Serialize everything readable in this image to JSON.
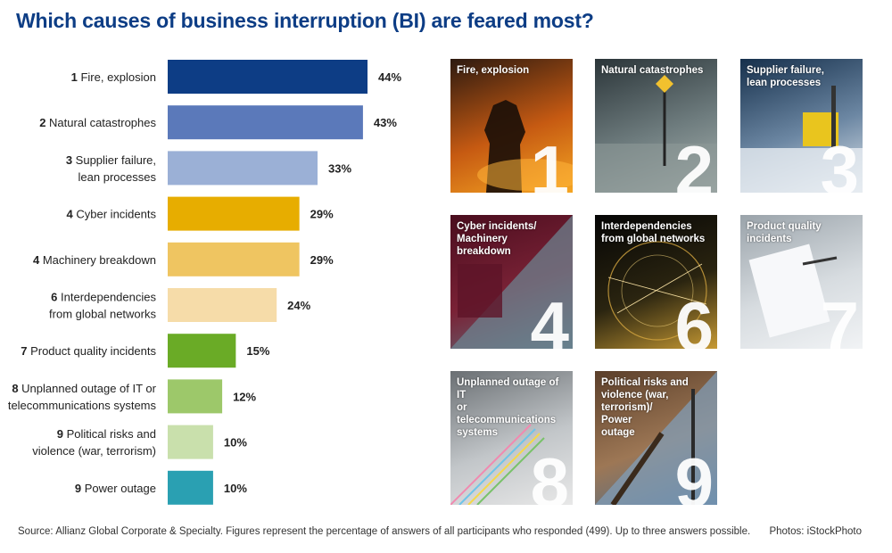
{
  "title": "Which causes of business interruption (BI) are feared most?",
  "chart_data": {
    "type": "bar",
    "orientation": "horizontal",
    "xlim": [
      0,
      44
    ],
    "categories": [
      {
        "rank": "1",
        "lines": [
          "Fire, explosion"
        ]
      },
      {
        "rank": "2",
        "lines": [
          "Natural catastrophes"
        ]
      },
      {
        "rank": "3",
        "lines": [
          "Supplier failure,",
          "lean processes"
        ]
      },
      {
        "rank": "4",
        "lines": [
          "Cyber incidents"
        ]
      },
      {
        "rank": "4",
        "lines": [
          "Machinery breakdown"
        ]
      },
      {
        "rank": "6",
        "lines": [
          "Interdependencies",
          "from global networks"
        ]
      },
      {
        "rank": "7",
        "lines": [
          "Product quality incidents"
        ]
      },
      {
        "rank": "8",
        "lines": [
          "Unplanned outage of IT or",
          "telecommunications systems"
        ]
      },
      {
        "rank": "9",
        "lines": [
          "Political risks and",
          "violence (war, terrorism)"
        ]
      },
      {
        "rank": "9",
        "lines": [
          "Power outage"
        ]
      }
    ],
    "values": [
      44,
      43,
      33,
      29,
      29,
      24,
      15,
      12,
      10,
      10
    ],
    "value_labels": [
      "44%",
      "43%",
      "33%",
      "29%",
      "29%",
      "24%",
      "15%",
      "12%",
      "10%",
      "10%"
    ],
    "colors": [
      "#0d3d85",
      "#5b79ba",
      "#9bb0d6",
      "#e7ad00",
      "#efc561",
      "#f6dca9",
      "#6aab26",
      "#9dc86a",
      "#c9e0ac",
      "#2aa0b2"
    ]
  },
  "tiles": [
    {
      "caption": "Fire, explosion",
      "number": "1",
      "colors": [
        "#2d1a10",
        "#c65a12",
        "#f5a623"
      ]
    },
    {
      "caption": "Natural catastrophes",
      "number": "2",
      "colors": [
        "#2b3539",
        "#6f7d7f",
        "#a9b3b0"
      ]
    },
    {
      "caption": "Supplier failure,\nlean processes",
      "number": "3",
      "colors": [
        "#16304c",
        "#6c87a3",
        "#dfe6ec"
      ]
    },
    {
      "caption": "Cyber incidents/\nMachinery\nbreakdown",
      "number": "4",
      "colors": [
        "#4a0d1e",
        "#7a2236",
        "#5c7480"
      ]
    },
    {
      "caption": "Interdependencies\nfrom global networks",
      "number": "6",
      "colors": [
        "#050505",
        "#2a2410",
        "#c79a34"
      ]
    },
    {
      "caption": "Product quality\nincidents",
      "number": "7",
      "colors": [
        "#9aa3aa",
        "#d7dce0",
        "#f1f3f5"
      ]
    },
    {
      "caption": "Unplanned outage of IT\nor telecommunications\nsystems",
      "number": "8",
      "colors": [
        "#6a6f73",
        "#c2c6c9",
        "#e8e8e8"
      ]
    },
    {
      "caption": "Political risks and\nviolence (war,\nterrorism)/\nPower\noutage",
      "number": "9",
      "colors": [
        "#5b3f2a",
        "#9d7755",
        "#4d6d8b"
      ]
    }
  ],
  "source": "Source: Allianz Global Corporate & Specialty. Figures represent the percentage of answers of all participants who responded (499). Up to three answers possible.",
  "photos_credit": "Photos: iStockPhoto"
}
